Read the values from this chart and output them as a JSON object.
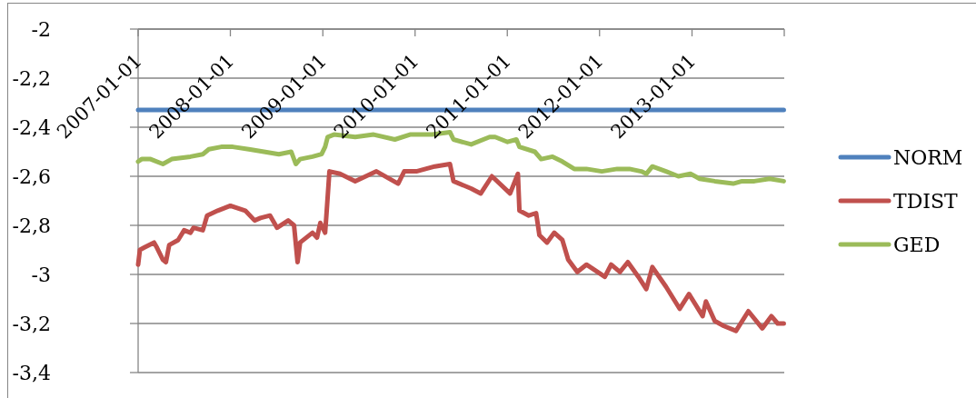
{
  "chart_data": {
    "type": "line",
    "xlim": [
      "2007-01-01",
      "2014-01-01"
    ],
    "xticks": [
      "2007-01-01",
      "2008-01-01",
      "2009-01-01",
      "2010-01-01",
      "2011-01-01",
      "2012-01-01",
      "2013-01-01",
      {
        "value": "2014-01-01",
        "label": null
      }
    ],
    "ylim": [
      -3.4,
      -2
    ],
    "yticks": [
      -2,
      {
        "value": -2.2,
        "label": "-2,2"
      },
      {
        "value": -2.4,
        "label": "-2,4"
      },
      {
        "value": -2.6,
        "label": "-2,6"
      },
      {
        "value": -2.8,
        "label": "-2,8"
      },
      -3,
      {
        "value": -3.2,
        "label": "-3,2"
      },
      {
        "value": -3.4,
        "label": "-3,4"
      }
    ],
    "grid": "y",
    "legend": "right",
    "series": [
      {
        "name": "NORM",
        "color": "#4f81bd",
        "x": [
          "2007-01-01",
          "2013-12-30"
        ],
        "values": [
          -2.33,
          -2.33
        ]
      },
      {
        "name": "TDIST",
        "color": "#c0504d",
        "x": [
          "2007-01-01",
          "2007-01-08",
          "2007-01-26",
          "2007-03-05",
          "2007-03-16",
          "2007-04-09",
          "2007-04-21",
          "2007-05-04",
          "2007-06-08",
          "2007-07-02",
          "2007-07-27",
          "2007-08-08",
          "2007-09-14",
          "2007-10-01",
          "2007-11-12",
          "2008-01-01",
          "2008-02-29",
          "2008-04-06",
          "2008-04-29",
          "2008-06-06",
          "2008-07-04",
          "2008-08-17",
          "2008-09-09",
          "2008-09-23",
          "2008-10-03",
          "2008-11-21",
          "2008-12-09",
          "2008-12-22",
          "2009-01-10",
          "2009-01-15",
          "2009-01-27",
          "2009-03-10",
          "2009-05-09",
          "2009-08-01",
          "2009-10-26",
          "2009-11-19",
          "2010-01-06",
          "2010-03-20",
          "2010-05-19",
          "2010-06-02",
          "2010-08-11",
          "2010-09-18",
          "2010-11-01",
          "2011-01-12",
          "2011-02-12",
          "2011-02-18",
          "2011-03-27",
          "2011-04-25",
          "2011-05-08",
          "2011-06-07",
          "2011-07-06",
          "2011-08-07",
          "2011-08-30",
          "2011-10-05",
          "2011-11-10",
          "2012-01-22",
          "2012-02-16",
          "2012-03-22",
          "2012-04-22",
          "2012-06-03",
          "2012-07-04",
          "2012-07-28",
          "2012-09-20",
          "2012-11-13",
          "2012-12-20",
          "2013-02-12",
          "2013-02-25",
          "2013-04-01",
          "2013-05-07",
          "2013-06-24",
          "2013-08-12",
          "2013-10-06",
          "2013-11-11",
          "2013-12-06",
          "2013-12-30"
        ],
        "values": [
          -2.96,
          -2.9,
          -2.89,
          -2.87,
          -2.89,
          -2.94,
          -2.95,
          -2.88,
          -2.86,
          -2.82,
          -2.83,
          -2.81,
          -2.82,
          -2.76,
          -2.74,
          -2.72,
          -2.74,
          -2.78,
          -2.77,
          -2.76,
          -2.81,
          -2.78,
          -2.8,
          -2.95,
          -2.87,
          -2.83,
          -2.85,
          -2.79,
          -2.83,
          -2.76,
          -2.58,
          -2.59,
          -2.62,
          -2.58,
          -2.63,
          -2.58,
          -2.58,
          -2.56,
          -2.55,
          -2.62,
          -2.65,
          -2.67,
          -2.6,
          -2.67,
          -2.59,
          -2.74,
          -2.76,
          -2.75,
          -2.84,
          -2.87,
          -2.83,
          -2.86,
          -2.94,
          -2.99,
          -2.96,
          -3.01,
          -2.96,
          -2.99,
          -2.95,
          -3.01,
          -3.06,
          -2.97,
          -3.05,
          -3.14,
          -3.08,
          -3.17,
          -3.11,
          -3.19,
          -3.21,
          -3.23,
          -3.15,
          -3.22,
          -3.17,
          -3.2,
          -3.2
        ]
      },
      {
        "name": "GED",
        "color": "#9bbb59",
        "x": [
          "2007-01-01",
          "2007-01-15",
          "2007-02-19",
          "2007-04-09",
          "2007-05-14",
          "2007-07-27",
          "2007-09-14",
          "2007-10-08",
          "2007-11-26",
          "2008-01-11",
          "2008-03-14",
          "2008-05-13",
          "2008-07-11",
          "2008-08-29",
          "2008-09-16",
          "2008-10-03",
          "2008-11-21",
          "2008-12-27",
          "2009-01-10",
          "2009-01-20",
          "2009-02-14",
          "2009-05-09",
          "2009-07-21",
          "2009-10-13",
          "2009-12-12",
          "2010-03-10",
          "2010-05-19",
          "2010-06-02",
          "2010-08-11",
          "2010-10-23",
          "2010-11-14",
          "2011-01-02",
          "2011-02-06",
          "2011-02-18",
          "2011-04-20",
          "2011-05-15",
          "2011-06-29",
          "2011-08-07",
          "2011-09-23",
          "2011-11-10",
          "2012-01-10",
          "2012-03-11",
          "2012-04-28",
          "2012-06-14",
          "2012-07-04",
          "2012-07-28",
          "2012-09-20",
          "2012-11-08",
          "2012-12-26",
          "2013-01-31",
          "2013-04-01",
          "2013-06-13",
          "2013-07-18",
          "2013-09-05",
          "2013-11-04",
          "2013-12-30"
        ],
        "values": [
          -2.54,
          -2.53,
          -2.53,
          -2.55,
          -2.53,
          -2.52,
          -2.51,
          -2.49,
          -2.48,
          -2.48,
          -2.49,
          -2.5,
          -2.51,
          -2.5,
          -2.55,
          -2.53,
          -2.52,
          -2.51,
          -2.48,
          -2.44,
          -2.43,
          -2.44,
          -2.43,
          -2.45,
          -2.43,
          -2.43,
          -2.42,
          -2.45,
          -2.47,
          -2.44,
          -2.44,
          -2.46,
          -2.45,
          -2.48,
          -2.5,
          -2.53,
          -2.52,
          -2.54,
          -2.57,
          -2.57,
          -2.58,
          -2.57,
          -2.57,
          -2.58,
          -2.59,
          -2.56,
          -2.58,
          -2.6,
          -2.59,
          -2.61,
          -2.62,
          -2.63,
          -2.62,
          -2.62,
          -2.61,
          -2.62
        ]
      }
    ]
  }
}
